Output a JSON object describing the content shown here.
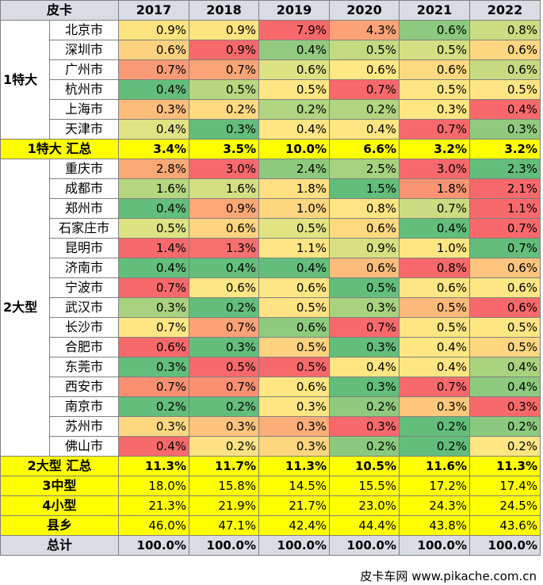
{
  "chart_data": {
    "type": "table",
    "corner_label": "皮卡",
    "columns": [
      "2017",
      "2018",
      "2019",
      "2020",
      "2021",
      "2022"
    ],
    "groups": [
      {
        "name": "1特大",
        "rows": [
          {
            "city": "北京市",
            "values": [
              "0.9%",
              "0.9%",
              "7.9%",
              "4.3%",
              "0.6%",
              "0.8%"
            ],
            "colors": [
              "#fde47f",
              "#fde47f",
              "#f8696b",
              "#fba376",
              "#8dc97e",
              "#cbdc81"
            ]
          },
          {
            "city": "深圳市",
            "values": [
              "0.6%",
              "0.9%",
              "0.4%",
              "0.5%",
              "0.5%",
              "0.6%"
            ],
            "colors": [
              "#fdd27f",
              "#f8696b",
              "#92cb7f",
              "#c4da81",
              "#d3df82",
              "#fed680"
            ]
          },
          {
            "city": "广州市",
            "values": [
              "0.7%",
              "0.7%",
              "0.6%",
              "0.6%",
              "0.6%",
              "0.6%"
            ],
            "colors": [
              "#f99a77",
              "#fba576",
              "#dde283",
              "#fde884",
              "#fdda7f",
              "#c6db81"
            ]
          },
          {
            "city": "杭州市",
            "values": [
              "0.4%",
              "0.5%",
              "0.5%",
              "0.7%",
              "0.5%",
              "0.5%"
            ],
            "colors": [
              "#63be7b",
              "#b8d780",
              "#fee783",
              "#f8696b",
              "#fee583",
              "#fee583"
            ]
          },
          {
            "city": "上海市",
            "values": [
              "0.3%",
              "0.2%",
              "0.2%",
              "0.2%",
              "0.3%",
              "0.4%"
            ],
            "colors": [
              "#fcbd7b",
              "#fed980",
              "#b1d580",
              "#b1d580",
              "#fee683",
              "#f8696b"
            ]
          },
          {
            "city": "天津市",
            "values": [
              "0.4%",
              "0.3%",
              "0.4%",
              "0.4%",
              "0.7%",
              "0.3%"
            ],
            "colors": [
              "#e0e383",
              "#63be7b",
              "#fee683",
              "#fee683",
              "#f8696b",
              "#91ca7e"
            ]
          }
        ],
        "subtotal": {
          "label": "1特大 汇总",
          "values": [
            "3.4%",
            "3.5%",
            "10.0%",
            "6.6%",
            "3.2%",
            "3.2%"
          ]
        }
      },
      {
        "name": "2大型",
        "rows": [
          {
            "city": "重庆市",
            "values": [
              "2.8%",
              "3.0%",
              "2.4%",
              "2.5%",
              "3.0%",
              "2.3%"
            ],
            "colors": [
              "#fba877",
              "#f8696b",
              "#8dca7e",
              "#a6d27f",
              "#f8696b",
              "#63be7b"
            ]
          },
          {
            "city": "成都市",
            "values": [
              "1.6%",
              "1.6%",
              "1.8%",
              "1.5%",
              "1.8%",
              "2.1%"
            ],
            "colors": [
              "#b7d680",
              "#d4df82",
              "#fee082",
              "#63be7b",
              "#fa9473",
              "#f8696b"
            ]
          },
          {
            "city": "郑州市",
            "values": [
              "0.4%",
              "0.9%",
              "1.0%",
              "0.8%",
              "0.7%",
              "1.1%"
            ],
            "colors": [
              "#63be7b",
              "#fba876",
              "#fed680",
              "#fee583",
              "#cadc81",
              "#f8696b"
            ]
          },
          {
            "city": "石家庄市",
            "values": [
              "0.5%",
              "0.6%",
              "0.5%",
              "0.6%",
              "0.4%",
              "0.7%"
            ],
            "colors": [
              "#dde283",
              "#fed480",
              "#e2e383",
              "#fed980",
              "#63be7b",
              "#f8696b"
            ]
          },
          {
            "city": "昆明市",
            "values": [
              "1.4%",
              "1.3%",
              "1.1%",
              "0.9%",
              "1.0%",
              "0.7%"
            ],
            "colors": [
              "#f8696b",
              "#f8706d",
              "#fee583",
              "#d6e082",
              "#fee683",
              "#63be7b"
            ]
          },
          {
            "city": "济南市",
            "values": [
              "0.4%",
              "0.4%",
              "0.4%",
              "0.6%",
              "0.8%",
              "0.6%"
            ],
            "colors": [
              "#63be7b",
              "#63be7b",
              "#63be7b",
              "#fcbd7b",
              "#f8696b",
              "#fdc57d"
            ]
          },
          {
            "city": "宁波市",
            "values": [
              "0.7%",
              "0.6%",
              "0.6%",
              "0.5%",
              "0.6%",
              "0.6%"
            ],
            "colors": [
              "#f8696b",
              "#fde684",
              "#fde684",
              "#63be7b",
              "#fde684",
              "#fde684"
            ]
          },
          {
            "city": "武汉市",
            "values": [
              "0.3%",
              "0.2%",
              "0.5%",
              "0.3%",
              "0.5%",
              "0.6%"
            ],
            "colors": [
              "#a8d27f",
              "#63be7b",
              "#fee383",
              "#a8d27f",
              "#fcb97a",
              "#f8696b"
            ]
          },
          {
            "city": "长沙市",
            "values": [
              "0.7%",
              "0.7%",
              "0.6%",
              "0.7%",
              "0.5%",
              "0.5%"
            ],
            "colors": [
              "#fee683",
              "#fba276",
              "#8ecb7e",
              "#f8696b",
              "#fee683",
              "#fee683"
            ]
          },
          {
            "city": "合肥市",
            "values": [
              "0.6%",
              "0.3%",
              "0.5%",
              "0.3%",
              "0.4%",
              "0.5%"
            ],
            "colors": [
              "#f8696b",
              "#63be7b",
              "#fed27f",
              "#63be7b",
              "#fee683",
              "#fed680"
            ]
          },
          {
            "city": "东莞市",
            "values": [
              "0.3%",
              "0.5%",
              "0.5%",
              "0.4%",
              "0.4%",
              "0.4%"
            ],
            "colors": [
              "#63be7b",
              "#f8696b",
              "#f8696b",
              "#fee683",
              "#fee683",
              "#a9d27f"
            ]
          },
          {
            "city": "西安市",
            "values": [
              "0.7%",
              "0.7%",
              "0.6%",
              "0.3%",
              "0.7%",
              "0.4%"
            ],
            "colors": [
              "#fa8f72",
              "#fa8f72",
              "#fee683",
              "#63be7b",
              "#f8696b",
              "#8dca7e"
            ]
          },
          {
            "city": "南京市",
            "values": [
              "0.2%",
              "0.2%",
              "0.3%",
              "0.2%",
              "0.3%",
              "0.3%"
            ],
            "colors": [
              "#63be7b",
              "#63be7b",
              "#fee683",
              "#8fca7e",
              "#fdc87d",
              "#f8696b"
            ]
          },
          {
            "city": "苏州市",
            "values": [
              "0.3%",
              "0.3%",
              "0.3%",
              "0.3%",
              "0.2%",
              "0.2%"
            ],
            "colors": [
              "#fed880",
              "#fdc37c",
              "#fbae79",
              "#f8696b",
              "#63be7b",
              "#8bc97e"
            ]
          },
          {
            "city": "佛山市",
            "values": [
              "0.4%",
              "0.2%",
              "0.3%",
              "0.2%",
              "0.2%",
              "0.2%"
            ],
            "colors": [
              "#f8696b",
              "#fee283",
              "#fed680",
              "#8bc97e",
              "#63be7b",
              "#fee683"
            ]
          }
        ],
        "subtotal": {
          "label": "2大型 汇总",
          "values": [
            "11.3%",
            "11.7%",
            "11.3%",
            "10.5%",
            "11.6%",
            "11.3%"
          ]
        }
      }
    ],
    "summary_rows": [
      {
        "label": "3中型",
        "values": [
          "18.0%",
          "15.8%",
          "14.5%",
          "15.5%",
          "17.2%",
          "17.4%"
        ]
      },
      {
        "label": "4小型",
        "values": [
          "21.3%",
          "21.9%",
          "21.7%",
          "23.0%",
          "24.3%",
          "24.5%"
        ]
      },
      {
        "label": "县乡",
        "values": [
          "46.0%",
          "47.1%",
          "42.4%",
          "44.4%",
          "43.8%",
          "43.6%"
        ]
      }
    ],
    "total": {
      "label": "总计",
      "values": [
        "100.0%",
        "100.0%",
        "100.0%",
        "100.0%",
        "100.0%",
        "100.0%"
      ]
    }
  },
  "watermark": "皮卡车网  www.pikache.com.cn"
}
